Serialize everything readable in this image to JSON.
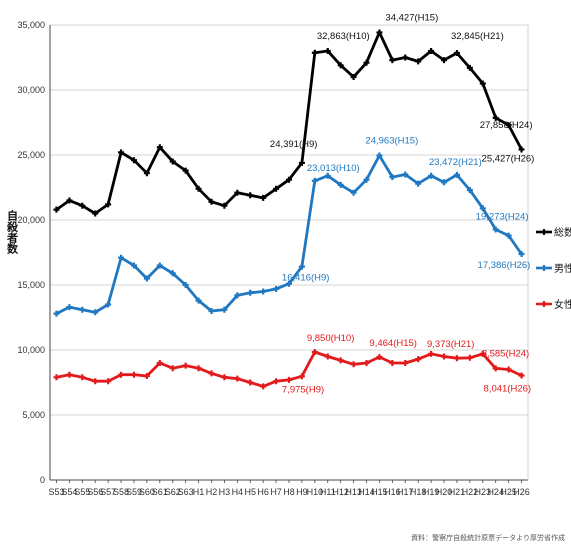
{
  "chart_data": {
    "type": "line",
    "ylabel": "自殺者数",
    "ylim": [
      0,
      35000
    ],
    "yticks": [
      "0",
      "5,000",
      "10,000",
      "15,000",
      "20,000",
      "25,000",
      "30,000",
      "35,000"
    ],
    "categories": [
      "S53",
      "S54",
      "S55",
      "S56",
      "S57",
      "S58",
      "S59",
      "S60",
      "S61",
      "S62",
      "S63",
      "H1",
      "H2",
      "H3",
      "H4",
      "H5",
      "H6",
      "H7",
      "H8",
      "H9",
      "H10",
      "H11",
      "H12",
      "H13",
      "H14",
      "H15",
      "H16",
      "H17",
      "H18",
      "H19",
      "H20",
      "H21",
      "H22",
      "H23",
      "H24",
      "H25",
      "H26"
    ],
    "series": [
      {
        "name": "総数",
        "color": "#000000",
        "values": [
          20800,
          21500,
          21100,
          20500,
          21200,
          25200,
          24600,
          23600,
          25600,
          24500,
          23800,
          22400,
          21400,
          21100,
          22100,
          21900,
          21700,
          22400,
          23100,
          24391,
          32863,
          33000,
          31900,
          31000,
          32100,
          34427,
          32300,
          32500,
          32200,
          33000,
          32300,
          32845,
          31700,
          30500,
          27858,
          27300,
          25427
        ]
      },
      {
        "name": "男性",
        "color": "#1f78c1",
        "values": [
          12800,
          13300,
          13100,
          12900,
          13500,
          17100,
          16500,
          15500,
          16500,
          15900,
          15000,
          13800,
          13000,
          13100,
          14200,
          14400,
          14500,
          14700,
          15100,
          16416,
          23013,
          23400,
          22700,
          22100,
          23100,
          24963,
          23300,
          23500,
          22800,
          23400,
          22900,
          23472,
          22300,
          20900,
          19273,
          18800,
          17386
        ]
      },
      {
        "name": "女性",
        "color": "#e31a1c",
        "values": [
          7900,
          8100,
          7900,
          7600,
          7600,
          8100,
          8100,
          8000,
          9000,
          8600,
          8800,
          8600,
          8200,
          7900,
          7800,
          7500,
          7200,
          7600,
          7700,
          7975,
          9850,
          9500,
          9200,
          8900,
          9000,
          9464,
          9000,
          9000,
          9300,
          9700,
          9500,
          9373,
          9400,
          9700,
          8585,
          8500,
          8041
        ]
      }
    ],
    "annotations": [
      {
        "series": 0,
        "index": 19,
        "text": "24,391(H9)"
      },
      {
        "series": 0,
        "index": 20,
        "text": "32,863(H10)"
      },
      {
        "series": 0,
        "index": 25,
        "text": "34,427(H15)"
      },
      {
        "series": 0,
        "index": 31,
        "text": "32,845(H21)"
      },
      {
        "series": 0,
        "index": 34,
        "text": "27,858(H24)"
      },
      {
        "series": 0,
        "index": 36,
        "text": "25,427(H26)"
      },
      {
        "series": 1,
        "index": 19,
        "text": "16,416(H9)"
      },
      {
        "series": 1,
        "index": 20,
        "text": "23,013(H10)"
      },
      {
        "series": 1,
        "index": 25,
        "text": "24,963(H15)"
      },
      {
        "series": 1,
        "index": 31,
        "text": "23,472(H21)"
      },
      {
        "series": 1,
        "index": 34,
        "text": "19,273(H24)"
      },
      {
        "series": 1,
        "index": 36,
        "text": "17,386(H26)"
      },
      {
        "series": 2,
        "index": 19,
        "text": "7,975(H9)"
      },
      {
        "series": 2,
        "index": 20,
        "text": "9,850(H10)"
      },
      {
        "series": 2,
        "index": 25,
        "text": "9,464(H15)"
      },
      {
        "series": 2,
        "index": 31,
        "text": "9,373(H21)"
      },
      {
        "series": 2,
        "index": 34,
        "text": "8,585(H24)"
      },
      {
        "series": 2,
        "index": 36,
        "text": "8,041(H26)"
      }
    ],
    "grid": true,
    "legend_position": "right",
    "source": "資料：警察庁自殺統計原票データより厚労省作成"
  }
}
